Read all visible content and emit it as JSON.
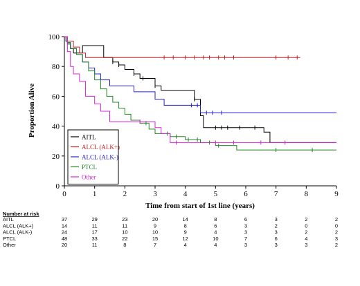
{
  "chart_data": {
    "type": "line",
    "xlabel": "Time from start of 1st line (years)",
    "ylabel": "Proportion Alive",
    "xlim": [
      0,
      9
    ],
    "ylim": [
      0,
      100
    ],
    "x_ticks": [
      0,
      1,
      2,
      3,
      4,
      5,
      6,
      7,
      8,
      9
    ],
    "y_ticks": [
      0,
      20,
      40,
      60,
      80,
      100
    ],
    "grid": false,
    "legend_position": "lower-left",
    "series": [
      {
        "name": "AITL",
        "color": "#000000",
        "x": [
          0,
          0.05,
          0.1,
          0.2,
          0.3,
          0.5,
          0.6,
          1.0,
          1.3,
          1.6,
          1.8,
          2.0,
          2.3,
          2.5,
          3.0,
          3.2,
          3.5,
          4.0,
          4.3,
          4.5,
          4.6,
          5.0,
          6.5,
          6.6,
          6.8,
          9.0
        ],
        "y": [
          100,
          97,
          95,
          92,
          89,
          89,
          94,
          94,
          86,
          83,
          81,
          78,
          75,
          72,
          67,
          64,
          64,
          64,
          58,
          47,
          39,
          39,
          39,
          36,
          29,
          29
        ]
      },
      {
        "name": "ALCL (ALK+)",
        "color": "#cc2222",
        "x": [
          0,
          0.1,
          0.3,
          0.5,
          0.7,
          1.0,
          2.0,
          3.0,
          4.0,
          5.0,
          6.0,
          7.0,
          7.8
        ],
        "y": [
          100,
          97,
          93,
          89,
          86,
          86,
          86,
          86,
          86,
          86,
          86,
          86,
          86
        ]
      },
      {
        "name": "ALCL (ALK-)",
        "color": "#2222cc",
        "x": [
          0,
          0.1,
          0.2,
          0.4,
          0.6,
          0.8,
          1.0,
          1.2,
          1.5,
          2.0,
          2.3,
          2.6,
          3.0,
          3.3,
          3.8,
          4.5,
          5.0,
          6.0,
          7.0,
          8.0,
          9.0
        ],
        "y": [
          100,
          96,
          92,
          88,
          83,
          79,
          75,
          71,
          67,
          67,
          63,
          63,
          58,
          54,
          54,
          49,
          49,
          49,
          49,
          49,
          49
        ]
      },
      {
        "name": "PTCL",
        "color": "#228822",
        "x": [
          0,
          0.1,
          0.2,
          0.4,
          0.6,
          0.8,
          1.0,
          1.2,
          1.4,
          1.6,
          1.8,
          2.0,
          2.2,
          2.5,
          2.8,
          3.0,
          3.5,
          4.0,
          4.5,
          5.0,
          5.5,
          5.7,
          6.0,
          7.0,
          8.0,
          9.0
        ],
        "y": [
          100,
          96,
          92,
          88,
          83,
          77,
          71,
          65,
          60,
          56,
          52,
          48,
          44,
          42,
          38,
          35,
          33,
          31,
          29,
          27,
          27,
          24,
          24,
          24,
          24,
          24
        ]
      },
      {
        "name": "Other",
        "color": "#dd22dd",
        "x": [
          0,
          0.1,
          0.2,
          0.3,
          0.5,
          0.7,
          1.0,
          1.2,
          1.5,
          2.0,
          2.5,
          3.0,
          3.2,
          3.5,
          4.0,
          5.0,
          6.0,
          7.0,
          8.0,
          9.0
        ],
        "y": [
          100,
          90,
          80,
          75,
          70,
          60,
          55,
          50,
          43,
          43,
          43,
          39,
          35,
          29,
          29,
          29,
          29,
          29,
          29,
          29
        ]
      }
    ],
    "censor_marks": [
      {
        "series": "AITL",
        "x": [
          1.6,
          1.8,
          2.3,
          2.6,
          3.0,
          4.3,
          5.0,
          5.2,
          5.4,
          5.8,
          6.3
        ]
      },
      {
        "series": "ALCL (ALK+)",
        "x": [
          3.3,
          3.6,
          4.0,
          4.3,
          4.6,
          4.8,
          5.1,
          5.3,
          5.6,
          7.0,
          7.4,
          7.7
        ]
      },
      {
        "series": "ALCL (ALK-)",
        "x": [
          4.2,
          4.4,
          4.7,
          4.9,
          5.2
        ]
      },
      {
        "series": "PTCL",
        "x": [
          2.7,
          3.4,
          3.7,
          4.1,
          4.4,
          4.8,
          5.1,
          7.0,
          8.2
        ]
      },
      {
        "series": "Other",
        "x": [
          2.5,
          3.7,
          5.0,
          5.6,
          6.5,
          7.3
        ]
      }
    ]
  },
  "risk_table": {
    "header": "Number at risk",
    "rows": [
      {
        "label": "AITL",
        "values": [
          "37",
          "29",
          "23",
          "20",
          "14",
          "8",
          "6",
          "3",
          "2",
          "2"
        ]
      },
      {
        "label": "ALCL (ALK+)",
        "values": [
          "14",
          "11",
          "11",
          "9",
          "8",
          "6",
          "3",
          "2",
          "0",
          "0"
        ]
      },
      {
        "label": "ALCL (ALK-)",
        "values": [
          "24",
          "17",
          "10",
          "10",
          "9",
          "4",
          "3",
          "3",
          "2",
          "2"
        ]
      },
      {
        "label": "PTCL",
        "values": [
          "48",
          "33",
          "22",
          "15",
          "12",
          "10",
          "7",
          "6",
          "4",
          "3"
        ]
      },
      {
        "label": "Other",
        "values": [
          "20",
          "11",
          "8",
          "7",
          "4",
          "4",
          "3",
          "3",
          "3",
          "2"
        ]
      }
    ]
  }
}
